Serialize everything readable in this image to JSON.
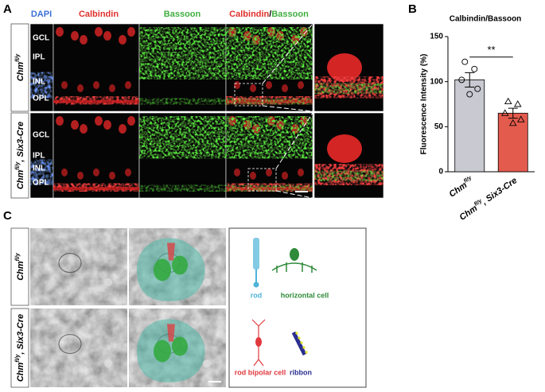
{
  "figure": {
    "panel_a": {
      "label": "A",
      "channels": [
        "DAPI",
        "Calbindin",
        "Bassoon"
      ],
      "merge": [
        "Calbindin",
        "/",
        "Bassoon"
      ],
      "rows": [
        {
          "gene": "Chm",
          "allele": "fl/y",
          "layers": [
            "GCL",
            "IPL",
            "INL",
            "OPL"
          ]
        },
        {
          "gene": "Chm",
          "allele": "fl/y",
          "suffix": ", Six3-Cre",
          "layers": [
            "GCL",
            "IPL",
            "INL",
            "OPL"
          ]
        }
      ]
    },
    "panel_b": {
      "label": "B"
    },
    "panel_c": {
      "label": "C",
      "rows": [
        {
          "gene": "Chm",
          "allele": "fl/y"
        },
        {
          "gene": "Chm",
          "allele": "fl/y",
          "suffix": ", Six3-Cre"
        }
      ],
      "legend": [
        {
          "label": "rod",
          "color": "#4fb3d9"
        },
        {
          "label": "horizontal cell",
          "color": "#2f8a3a"
        },
        {
          "label": "rod bipolar cell",
          "color": "#e0393e"
        },
        {
          "label": "ribbon",
          "color": "#2b2f8f"
        }
      ]
    }
  },
  "chart_data": {
    "type": "bar",
    "title": "Calbindin/Bassoon",
    "y_label": "Fluorescence Intensity (%)",
    "categories": [
      {
        "gene": "Chm",
        "allele": "fl/y"
      },
      {
        "gene": "Chm",
        "allele": "fl/y",
        "suffix": ", Six3-Cre"
      }
    ],
    "values": [
      102,
      65
    ],
    "errors": [
      8,
      5.5
    ],
    "colors": [
      "#c9c9d1",
      "#e35b4d"
    ],
    "points": [
      [
        122,
        114,
        102,
        92,
        86
      ],
      [
        78,
        75,
        65,
        58,
        54
      ]
    ],
    "point_markers": [
      "circle",
      "triangle"
    ],
    "ylim": [
      0,
      150
    ],
    "yticks": [
      0,
      50,
      100,
      150
    ],
    "significance": "**"
  }
}
